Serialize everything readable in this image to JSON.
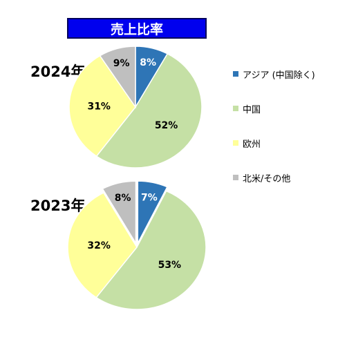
{
  "chart_data": {
    "type": "pie",
    "title": "売上比率",
    "legend": {
      "position": "right",
      "entries": [
        "アジア (中国除く)",
        "中国",
        "欧州",
        "北米/その他"
      ]
    },
    "colors": [
      "#2e75b6",
      "#c5e0a5",
      "#ffff99",
      "#bfbfbf"
    ],
    "pies": [
      {
        "label": "2024年",
        "slices": [
          {
            "name": "アジア (中国除く)",
            "value": 8,
            "label": "8%"
          },
          {
            "name": "中国",
            "value": 52,
            "label": "52%"
          },
          {
            "name": "欧州",
            "value": 31,
            "label": "31%"
          },
          {
            "name": "北米/その他",
            "value": 9,
            "label": "9%"
          }
        ]
      },
      {
        "label": "2023年",
        "slices": [
          {
            "name": "アジア (中国除く)",
            "value": 7,
            "label": "7%"
          },
          {
            "name": "中国",
            "value": 53,
            "label": "53%"
          },
          {
            "name": "欧州",
            "value": 32,
            "label": "32%"
          },
          {
            "name": "北米/その他",
            "value": 8,
            "label": "8%"
          }
        ]
      }
    ]
  }
}
